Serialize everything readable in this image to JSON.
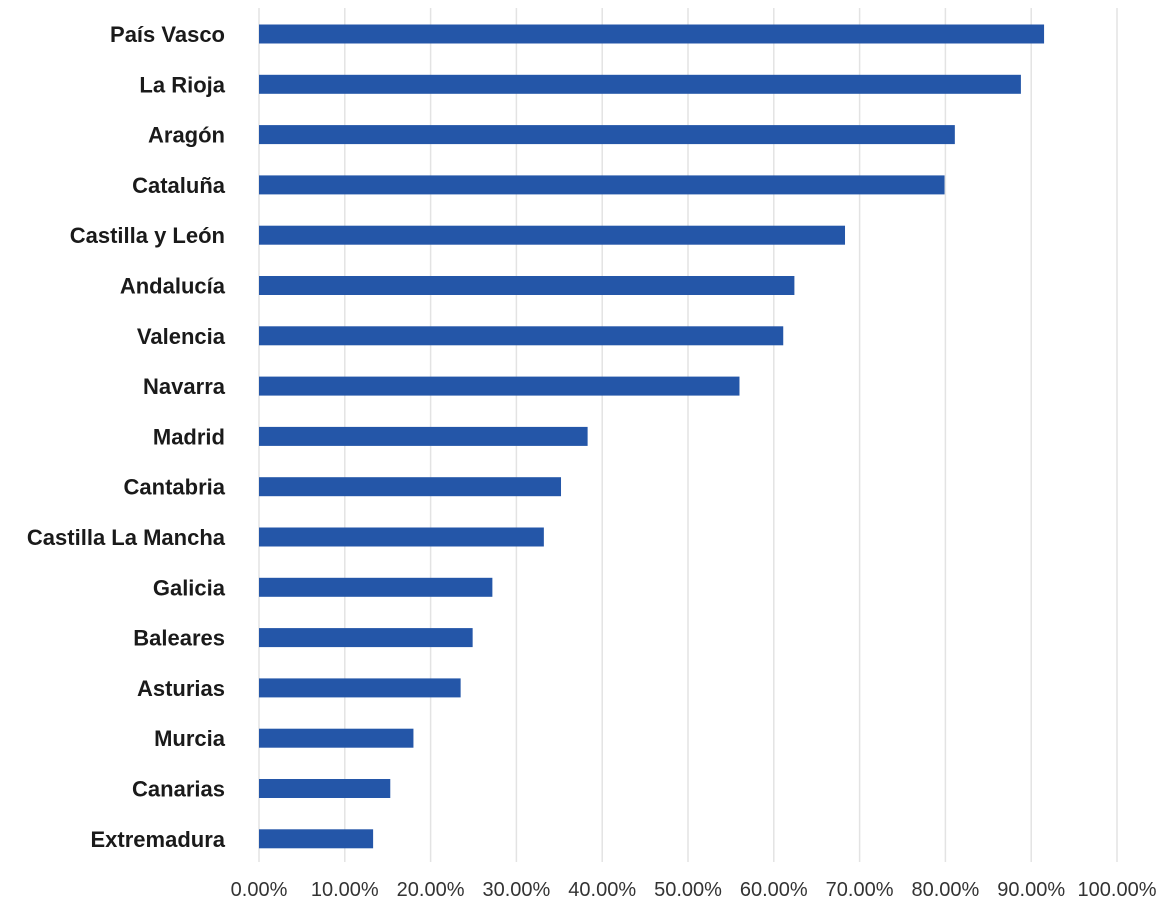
{
  "chart_data": {
    "type": "bar",
    "orientation": "horizontal",
    "categories": [
      "País Vasco",
      "La Rioja",
      "Aragón",
      "Cataluña",
      "Castilla y León",
      "Andalucía",
      "Valencia",
      "Navarra",
      "Madrid",
      "Cantabria",
      "Castilla La Mancha",
      "Galicia",
      "Baleares",
      "Asturias",
      "Murcia",
      "Canarias",
      "Extremadura"
    ],
    "values": [
      91.5,
      88.8,
      81.1,
      79.9,
      68.3,
      62.4,
      61.1,
      56.0,
      38.3,
      35.2,
      33.2,
      27.2,
      24.9,
      23.5,
      18.0,
      15.3,
      13.3
    ],
    "xlim": [
      0,
      100
    ],
    "x_ticks": [
      0,
      10,
      20,
      30,
      40,
      50,
      60,
      70,
      80,
      90,
      100
    ],
    "x_tick_labels": [
      "0.00%",
      "10.00%",
      "20.00%",
      "30.00%",
      "40.00%",
      "50.00%",
      "60.00%",
      "70.00%",
      "80.00%",
      "90.00%",
      "100.00%"
    ],
    "title": "",
    "xlabel": "",
    "ylabel": "",
    "grid": "vertical",
    "legend": "none",
    "colors": {
      "bar": "#2456a8",
      "grid": "#e3e3e3",
      "label": "#1a1a1a",
      "tick": "#333333"
    }
  }
}
